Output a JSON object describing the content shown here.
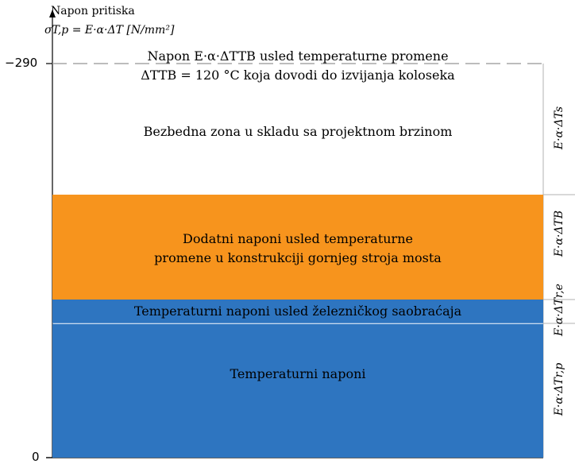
{
  "axis": {
    "title": "Napon pritiska",
    "formula": "σT,p = E·α·ΔT [N/mm²]",
    "tick_top": "−290",
    "tick_bottom": "0"
  },
  "buckling_line": {
    "line1": "Napon E·α·ΔTTB usled temperaturne promene",
    "line2": "ΔTTB = 120 °C koja dovodi do izvijanja koloseka"
  },
  "zones": {
    "safe": {
      "text": "Bezbedna zona u skladu sa projektnom brzinom",
      "color": "#ffffff"
    },
    "additional": {
      "line1": "Dodatni naponi usled temperaturne",
      "line2": "promene u konstrukciji gornjeg stroja mosta",
      "color": "#f7941d"
    },
    "rail_traffic": {
      "text": "Temperaturni naponi usled železničkog saobraćaja",
      "color": "#2e75c0"
    },
    "temperature": {
      "text": "Temperaturni naponi",
      "color": "#2e75c0"
    }
  },
  "side_labels": {
    "s": "E·α·ΔTs",
    "b": "E·α·ΔTB",
    "re": "E·α·ΔTr,e",
    "rp": "E·α·ΔTr,p"
  }
}
